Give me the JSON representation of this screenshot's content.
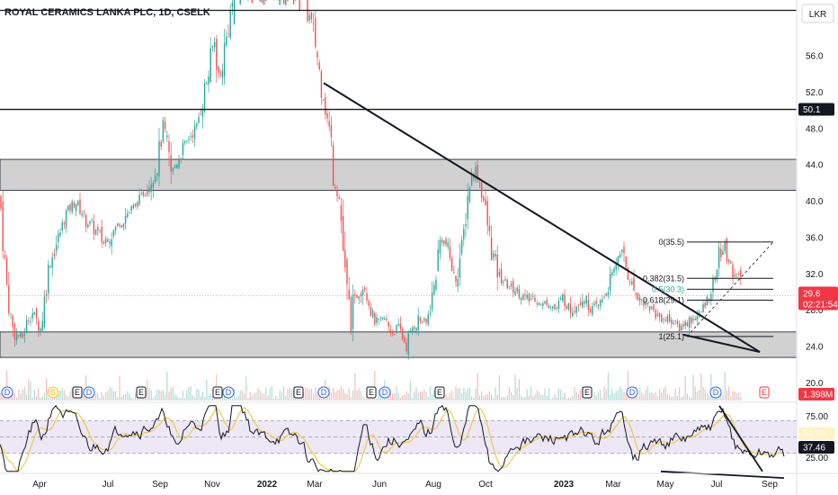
{
  "header": {
    "title": "ROYAL CERAMICS LANKA PLC, 1D, CSELK",
    "currency": "LKR"
  },
  "colors": {
    "up": "#26a69a",
    "down": "#ef5350",
    "zone_fill": "#d1d1d1",
    "rsi_line": "#131722",
    "rsi_ma": "#f0c94a",
    "rsi_band": "#ede7f6",
    "price_badge": "#f23645",
    "dark_badge": "#131722",
    "fib_mid": "#26a69a",
    "dividend": "#2962ff",
    "earnings": "#131722"
  },
  "chart_data": {
    "type": "candlestick",
    "price_axis": {
      "min": 22.0,
      "max": 61.5,
      "ticks": [
        "56.0",
        "52.0",
        "48.0",
        "44.0",
        "40.0",
        "36.0",
        "32.0",
        "28.0",
        "24.0",
        "20.0"
      ]
    },
    "x_axis": {
      "labels": [
        "Apr",
        "Jul",
        "Sep",
        "Nov",
        "2022",
        "Mar",
        "Jun",
        "Aug",
        "Oct",
        "2023",
        "Mar",
        "May",
        "Jul",
        "Sep"
      ]
    },
    "close_path": [
      [
        0,
        40.5
      ],
      [
        8,
        30
      ],
      [
        15,
        25.5
      ],
      [
        25,
        25
      ],
      [
        35,
        28
      ],
      [
        45,
        26
      ],
      [
        55,
        33
      ],
      [
        65,
        36
      ],
      [
        75,
        39
      ],
      [
        85,
        40
      ],
      [
        95,
        38
      ],
      [
        105,
        37
      ],
      [
        115,
        35.5
      ],
      [
        125,
        36.5
      ],
      [
        135,
        38
      ],
      [
        145,
        39
      ],
      [
        155,
        40
      ],
      [
        165,
        42
      ],
      [
        175,
        44
      ],
      [
        182,
        48
      ],
      [
        190,
        43
      ],
      [
        200,
        45
      ],
      [
        210,
        47
      ],
      [
        218,
        48
      ],
      [
        225,
        51
      ],
      [
        232,
        54
      ],
      [
        238,
        58
      ],
      [
        244,
        53
      ],
      [
        250,
        57
      ],
      [
        257,
        61
      ],
      [
        263,
        65
      ],
      [
        270,
        66
      ],
      [
        280,
        66
      ],
      [
        290,
        66
      ],
      [
        300,
        66
      ],
      [
        310,
        66
      ],
      [
        320,
        66
      ],
      [
        330,
        66
      ],
      [
        340,
        62
      ],
      [
        345,
        60
      ],
      [
        350,
        58
      ],
      [
        357,
        53
      ],
      [
        362,
        50
      ],
      [
        368,
        47
      ],
      [
        372,
        42
      ],
      [
        378,
        40
      ],
      [
        384,
        31
      ],
      [
        390,
        27
      ],
      [
        398,
        30
      ],
      [
        405,
        31
      ],
      [
        412,
        28
      ],
      [
        420,
        26.5
      ],
      [
        428,
        27
      ],
      [
        436,
        25.5
      ],
      [
        444,
        26
      ],
      [
        452,
        24
      ],
      [
        458,
        26
      ],
      [
        466,
        27
      ],
      [
        474,
        26.5
      ],
      [
        482,
        30
      ],
      [
        490,
        36
      ],
      [
        498,
        35
      ],
      [
        506,
        31
      ],
      [
        514,
        35
      ],
      [
        522,
        42
      ],
      [
        530,
        43.5
      ],
      [
        538,
        40
      ],
      [
        546,
        35
      ],
      [
        554,
        32
      ],
      [
        562,
        31
      ],
      [
        570,
        30.5
      ],
      [
        578,
        30
      ],
      [
        586,
        29
      ],
      [
        594,
        29.5
      ],
      [
        602,
        28.5
      ],
      [
        610,
        29
      ],
      [
        618,
        28
      ],
      [
        626,
        29.5
      ],
      [
        634,
        28
      ],
      [
        642,
        29
      ],
      [
        650,
        29.5
      ],
      [
        658,
        28
      ],
      [
        666,
        28.5
      ],
      [
        674,
        30
      ],
      [
        682,
        32
      ],
      [
        690,
        35
      ],
      [
        698,
        32
      ],
      [
        706,
        30
      ],
      [
        714,
        29
      ],
      [
        722,
        28.5
      ],
      [
        730,
        27.5
      ],
      [
        738,
        27
      ],
      [
        746,
        27
      ],
      [
        754,
        26
      ],
      [
        762,
        26.5
      ],
      [
        770,
        27
      ],
      [
        778,
        27.5
      ],
      [
        786,
        29
      ],
      [
        794,
        31
      ],
      [
        800,
        34
      ],
      [
        806,
        35
      ],
      [
        812,
        33
      ],
      [
        818,
        32
      ],
      [
        822,
        31.5
      ],
      [
        826,
        29.6
      ]
    ],
    "current_price": {
      "value": "29.6",
      "countdown": "02:21:54"
    },
    "volume": {
      "value": "1.398M"
    },
    "horizontal_levels": [
      {
        "price": 61.0,
        "label": ""
      },
      {
        "price": 50.1,
        "label": "50.1"
      }
    ],
    "zones": [
      {
        "from": 41.2,
        "to": 44.6
      },
      {
        "from": 22.8,
        "to": 25.6
      }
    ],
    "trendlines": [
      {
        "from": [
          360,
          53.0
        ],
        "to": [
          845,
          23.4
        ]
      },
      {
        "from": [
          760,
          25.3
        ],
        "to": [
          845,
          23.4
        ]
      }
    ],
    "fib_levels": [
      {
        "label": "0(35.5)",
        "price": 35.5
      },
      {
        "label": "0.382(31.5)",
        "price": 31.5
      },
      {
        "label": "0.5(30.3)",
        "price": 30.3
      },
      {
        "label": "0.618(29.1)",
        "price": 29.1
      },
      {
        "label": "1(25.1)",
        "price": 25.1
      }
    ],
    "events": [
      {
        "x": 8,
        "type": "D"
      },
      {
        "x": 59,
        "type": "S"
      },
      {
        "x": 86,
        "type": "E"
      },
      {
        "x": 99,
        "type": "D"
      },
      {
        "x": 157,
        "type": "E"
      },
      {
        "x": 242,
        "type": "E"
      },
      {
        "x": 254,
        "type": "D"
      },
      {
        "x": 332,
        "type": "E"
      },
      {
        "x": 360,
        "type": "D"
      },
      {
        "x": 413,
        "type": "E"
      },
      {
        "x": 428,
        "type": "D"
      },
      {
        "x": 489,
        "type": "E"
      },
      {
        "x": 653,
        "type": "E"
      },
      {
        "x": 703,
        "type": "D"
      },
      {
        "x": 796,
        "type": "D"
      },
      {
        "x": 850,
        "type": "E"
      }
    ],
    "rsi": {
      "ticks": [
        "75.00",
        "25.00"
      ],
      "value_ma": "54.26",
      "value": "37.46",
      "levels": {
        "upper": 70,
        "lower": 30
      },
      "trendlines": [
        {
          "from": [
            800,
            88
          ],
          "to": [
            848,
            8
          ]
        },
        {
          "from": [
            735,
            8
          ],
          "to": [
            872,
            0
          ]
        }
      ]
    }
  }
}
